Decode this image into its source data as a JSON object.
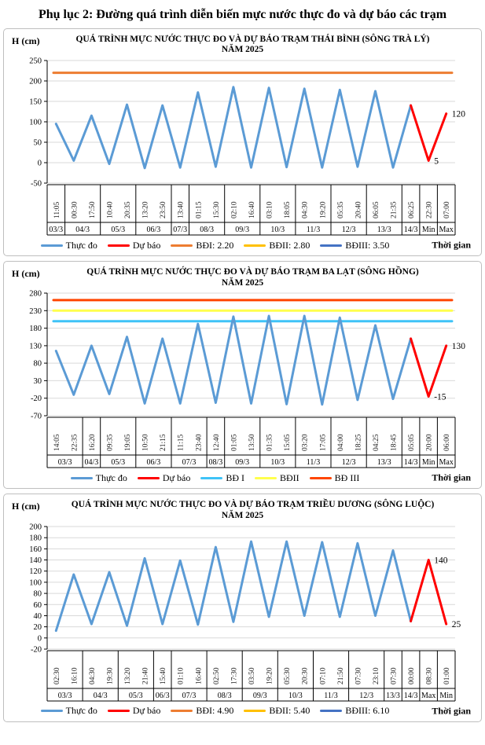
{
  "page": {
    "title": "Phụ lục 2: Đường quá trình diễn biến mực nước thực đo và dự báo các trạm"
  },
  "chart_data": [
    {
      "type": "line",
      "title": "QUÁ TRÌNH MỰC NƯỚC THỰC ĐO VÀ DỰ BÁO TRẠM THÁI BÌNH (SÔNG TRÀ LÝ)",
      "subtitle": "NĂM 2025",
      "y_axis_label": "H (cm)",
      "x_axis_label": "Thời gian",
      "y_min": -50,
      "y_max": 250,
      "y_step": 50,
      "grid": true,
      "times": [
        "11:05",
        "00:30",
        "17:50",
        "10:40",
        "20:35",
        "13:20",
        "23:50",
        "13:40",
        "01:15",
        "15:30",
        "02:10",
        "16:40",
        "03:10",
        "18:05",
        "04:30",
        "19:20",
        "05:35",
        "20:40",
        "06:05",
        "21:35",
        "06:25",
        "22:30",
        "07:00"
      ],
      "date_groups": [
        {
          "label": "03/3",
          "span": 1
        },
        {
          "label": "04/3",
          "span": 2
        },
        {
          "label": "05/3",
          "span": 2
        },
        {
          "label": "06/3",
          "span": 2
        },
        {
          "label": "07/3",
          "span": 1
        },
        {
          "label": "08/3",
          "span": 2
        },
        {
          "label": "09/3",
          "span": 2
        },
        {
          "label": "10/3",
          "span": 2
        },
        {
          "label": "11/3",
          "span": 2
        },
        {
          "label": "12/3",
          "span": 2
        },
        {
          "label": "13/3",
          "span": 2
        },
        {
          "label": "14/3",
          "span": 1
        },
        {
          "label": "Min",
          "span": 1
        },
        {
          "label": "Max",
          "span": 1
        }
      ],
      "values": [
        95,
        5,
        115,
        -3,
        142,
        -13,
        140,
        -12,
        172,
        -10,
        185,
        -12,
        183,
        -11,
        181,
        -12,
        178,
        -10,
        175,
        -12,
        140,
        5,
        120
      ],
      "forecast_start_index": 20,
      "series_colors": {
        "observed": "#5B9BD5",
        "forecast": "#FF0000"
      },
      "ref_lines": [
        {
          "label": "BĐI: 2.20",
          "value": 220,
          "color": "#ED7D31"
        },
        {
          "label": "BĐII: 2.80",
          "value": 280,
          "color": "#FFC000"
        },
        {
          "label": "BĐIII: 3.50",
          "value": 350,
          "color": "#4472C4"
        }
      ],
      "annotations": [
        {
          "text": "5",
          "index": 21,
          "value": 5
        },
        {
          "text": "120",
          "index": 22,
          "value": 120
        }
      ],
      "legend": [
        {
          "label": "Thực đo",
          "color": "#5B9BD5"
        },
        {
          "label": "Dự báo",
          "color": "#FF0000"
        },
        {
          "label": "BĐI: 2.20",
          "color": "#ED7D31"
        },
        {
          "label": "BĐII: 2.80",
          "color": "#FFC000"
        },
        {
          "label": "BĐIII: 3.50",
          "color": "#4472C4"
        }
      ]
    },
    {
      "type": "line",
      "title": "QUÁ TRÌNH MỰC NƯỚC THỰC ĐO VÀ DỰ BÁO TRẠM BA LẠT (SÔNG HỒNG)",
      "subtitle": "NĂM 2025",
      "y_axis_label": "H (cm)",
      "x_axis_label": "Thời gian",
      "y_min": -70,
      "y_max": 280,
      "y_step": 50,
      "grid": true,
      "times": [
        "14:05",
        "22:35",
        "16:20",
        "09:35",
        "19:05",
        "10:50",
        "21:15",
        "11:15",
        "23:40",
        "12:40",
        "01:05",
        "13:50",
        "01:35",
        "15:05",
        "03:20",
        "17:05",
        "04:00",
        "18:25",
        "04:25",
        "18:45",
        "05:05",
        "20:00",
        "06:00"
      ],
      "date_groups": [
        {
          "label": "03/3",
          "span": 2
        },
        {
          "label": "04/3",
          "span": 1
        },
        {
          "label": "05/3",
          "span": 2
        },
        {
          "label": "06/3",
          "span": 2
        },
        {
          "label": "07/3",
          "span": 2
        },
        {
          "label": "08/3",
          "span": 1
        },
        {
          "label": "09/3",
          "span": 2
        },
        {
          "label": "10/3",
          "span": 2
        },
        {
          "label": "11/3",
          "span": 2
        },
        {
          "label": "12/3",
          "span": 2
        },
        {
          "label": "13/3",
          "span": 2
        },
        {
          "label": "14/3",
          "span": 1
        },
        {
          "label": "Min",
          "span": 1
        },
        {
          "label": "Max",
          "span": 1
        }
      ],
      "values": [
        115,
        -10,
        130,
        -8,
        155,
        -35,
        150,
        -35,
        192,
        -33,
        213,
        -35,
        215,
        -37,
        215,
        -38,
        210,
        -25,
        188,
        -22,
        150,
        -15,
        130
      ],
      "forecast_start_index": 20,
      "series_colors": {
        "observed": "#5B9BD5",
        "forecast": "#FF0000"
      },
      "ref_lines": [
        {
          "label": "BĐ I",
          "value": 200,
          "color": "#3FC3F7"
        },
        {
          "label": "BĐII",
          "value": 230,
          "color": "#FFFF4D"
        },
        {
          "label": "BĐ III",
          "value": 260,
          "color": "#FF4500"
        }
      ],
      "annotations": [
        {
          "text": "-15",
          "index": 21,
          "value": -15
        },
        {
          "text": "130",
          "index": 22,
          "value": 130
        }
      ],
      "legend": [
        {
          "label": "Thực đo",
          "color": "#5B9BD5"
        },
        {
          "label": "Dự báo",
          "color": "#FF0000"
        },
        {
          "label": "BĐ I",
          "color": "#3FC3F7"
        },
        {
          "label": "BĐII",
          "color": "#FFFF4D"
        },
        {
          "label": "BĐ III",
          "color": "#FF4500"
        }
      ]
    },
    {
      "type": "line",
      "title": "QUÁ TRÌNH MỰC NƯỚC THỰC ĐO VÀ DỰ BÁO TRẠM TRIỀU DƯƠNG  (SÔNG LUỘC)",
      "subtitle": "NĂM 2025",
      "y_axis_label": "H (cm)",
      "x_axis_label": "Thời gian",
      "y_min": -20,
      "y_max": 200,
      "y_step": 20,
      "grid": true,
      "times": [
        "02:30",
        "16:10",
        "04:30",
        "19:30",
        "13:20",
        "21:40",
        "15:40",
        "01:10",
        "16:40",
        "02:50",
        "17:30",
        "03:50",
        "19:20",
        "05:30",
        "20:30",
        "07:10",
        "21:50",
        "07:30",
        "23:10",
        "07:30",
        "00:00",
        "08:30",
        "01:00"
      ],
      "date_groups": [
        {
          "label": "03/3",
          "span": 2
        },
        {
          "label": "04/3",
          "span": 2
        },
        {
          "label": "05/3",
          "span": 2
        },
        {
          "label": "06/3",
          "span": 1
        },
        {
          "label": "07/3",
          "span": 2
        },
        {
          "label": "08/3",
          "span": 2
        },
        {
          "label": "09/3",
          "span": 2
        },
        {
          "label": "10/3",
          "span": 2
        },
        {
          "label": "11/3",
          "span": 2
        },
        {
          "label": "12/3",
          "span": 2
        },
        {
          "label": "13/3",
          "span": 1
        },
        {
          "label": "14/3",
          "span": 1
        },
        {
          "label": "Max",
          "span": 1
        },
        {
          "label": "Min",
          "span": 1
        }
      ],
      "values": [
        13,
        114,
        25,
        118,
        22,
        143,
        25,
        139,
        24,
        163,
        29,
        173,
        38,
        173,
        40,
        172,
        38,
        170,
        40,
        157,
        30,
        140,
        25
      ],
      "forecast_start_index": 20,
      "series_colors": {
        "observed": "#5B9BD5",
        "forecast": "#FF0000"
      },
      "ref_lines": [
        {
          "label": "BĐI: 4.90",
          "value": 490,
          "color": "#ED7D31"
        },
        {
          "label": "BĐII: 5.40",
          "value": 540,
          "color": "#FFC000"
        },
        {
          "label": "BĐIII: 6.10",
          "value": 610,
          "color": "#4472C4"
        }
      ],
      "annotations": [
        {
          "text": "140",
          "index": 21,
          "value": 140
        },
        {
          "text": "25",
          "index": 22,
          "value": 25
        }
      ],
      "legend": [
        {
          "label": "Thực đo",
          "color": "#5B9BD5"
        },
        {
          "label": "Dự báo",
          "color": "#FF0000"
        },
        {
          "label": "BĐI: 4.90",
          "color": "#ED7D31"
        },
        {
          "label": "BĐII: 5.40",
          "color": "#FFC000"
        },
        {
          "label": "BĐIII: 6.10",
          "color": "#4472C4"
        }
      ]
    }
  ]
}
